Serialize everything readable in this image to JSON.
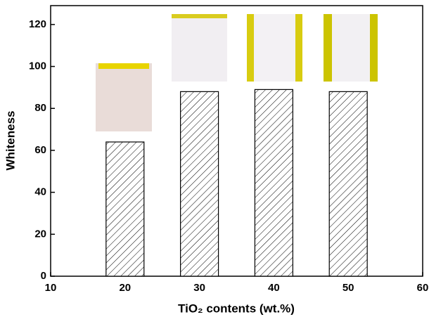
{
  "chart_data": {
    "type": "bar",
    "x_label": "TiO₂ contents  (wt.%)",
    "y_label": "Whiteness",
    "x": [
      20,
      30,
      40,
      50
    ],
    "values": [
      64,
      88,
      89,
      88
    ],
    "xlim": [
      10,
      60
    ],
    "xticks": [
      10,
      20,
      30,
      40,
      50,
      60
    ],
    "ylim": [
      0,
      129
    ],
    "yticks": [
      0,
      20,
      40,
      60,
      80,
      100,
      120
    ],
    "color": "#ffffff"
  }
}
